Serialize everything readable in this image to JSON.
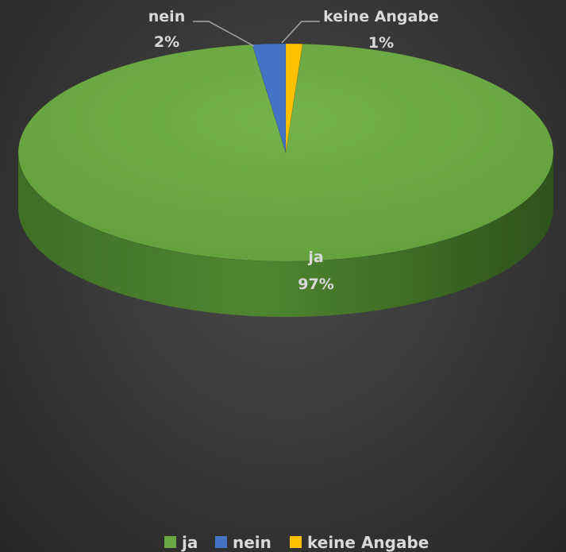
{
  "chart_data": {
    "type": "pie",
    "categories": [
      "ja",
      "nein",
      "keine Angabe"
    ],
    "values": [
      97,
      2,
      1
    ],
    "labels": [
      {
        "category": "ja",
        "percent": "97%"
      },
      {
        "category": "nein",
        "percent": "2%"
      },
      {
        "category": "keine Angabe",
        "percent": "1%"
      }
    ],
    "colors": [
      "#6aa843",
      "#4472c4",
      "#ffc000"
    ],
    "style": "3d",
    "legend": "bottom"
  }
}
